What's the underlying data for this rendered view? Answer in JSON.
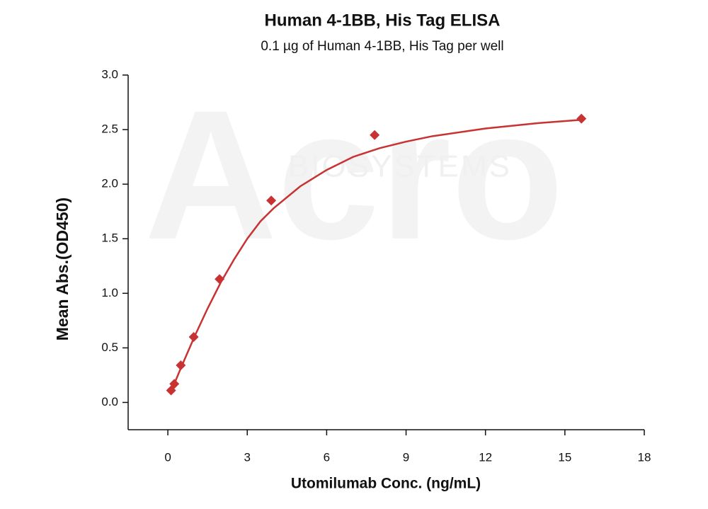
{
  "chart_data": {
    "type": "scatter",
    "title": "Human 4-1BB, His Tag ELISA",
    "subtitle": "0.1 µg of Human 4-1BB, His Tag per well",
    "x_label": "Utomilumab Conc. (ng/mL)",
    "y_label": "Mean Abs.(OD450)",
    "watermark": [
      "Acro",
      "BIOSYSTEMS"
    ],
    "color": "#c83232",
    "series": [
      {
        "x": [
          0.122,
          0.244,
          0.488,
          0.977,
          1.953,
          3.906,
          7.8125,
          15.625
        ],
        "values": [
          0.11,
          0.17,
          0.34,
          0.6,
          1.13,
          1.85,
          2.45,
          2.6
        ]
      }
    ],
    "curve": {
      "x": [
        0.122,
        0.5,
        1,
        1.5,
        2,
        2.5,
        3,
        3.5,
        4,
        5,
        6,
        7,
        8,
        9,
        10,
        12,
        14,
        15.625
      ],
      "values": [
        0.1,
        0.32,
        0.6,
        0.86,
        1.1,
        1.31,
        1.5,
        1.66,
        1.78,
        1.98,
        2.13,
        2.25,
        2.33,
        2.39,
        2.44,
        2.51,
        2.56,
        2.59
      ]
    },
    "xlim": [
      -1.5,
      18
    ],
    "ylim": [
      -0.25,
      3.0
    ],
    "xticks": [
      0,
      3,
      6,
      9,
      12,
      15,
      18
    ],
    "yticks": [
      {
        "value": 0,
        "label": "0.0"
      },
      {
        "value": 0.5,
        "label": "0.5"
      },
      {
        "value": 1,
        "label": "1.0"
      },
      {
        "value": 1.5,
        "label": "1.5"
      },
      {
        "value": 2,
        "label": "2.0"
      },
      {
        "value": 2.5,
        "label": "2.5"
      },
      {
        "value": 3,
        "label": "3.0"
      }
    ]
  }
}
